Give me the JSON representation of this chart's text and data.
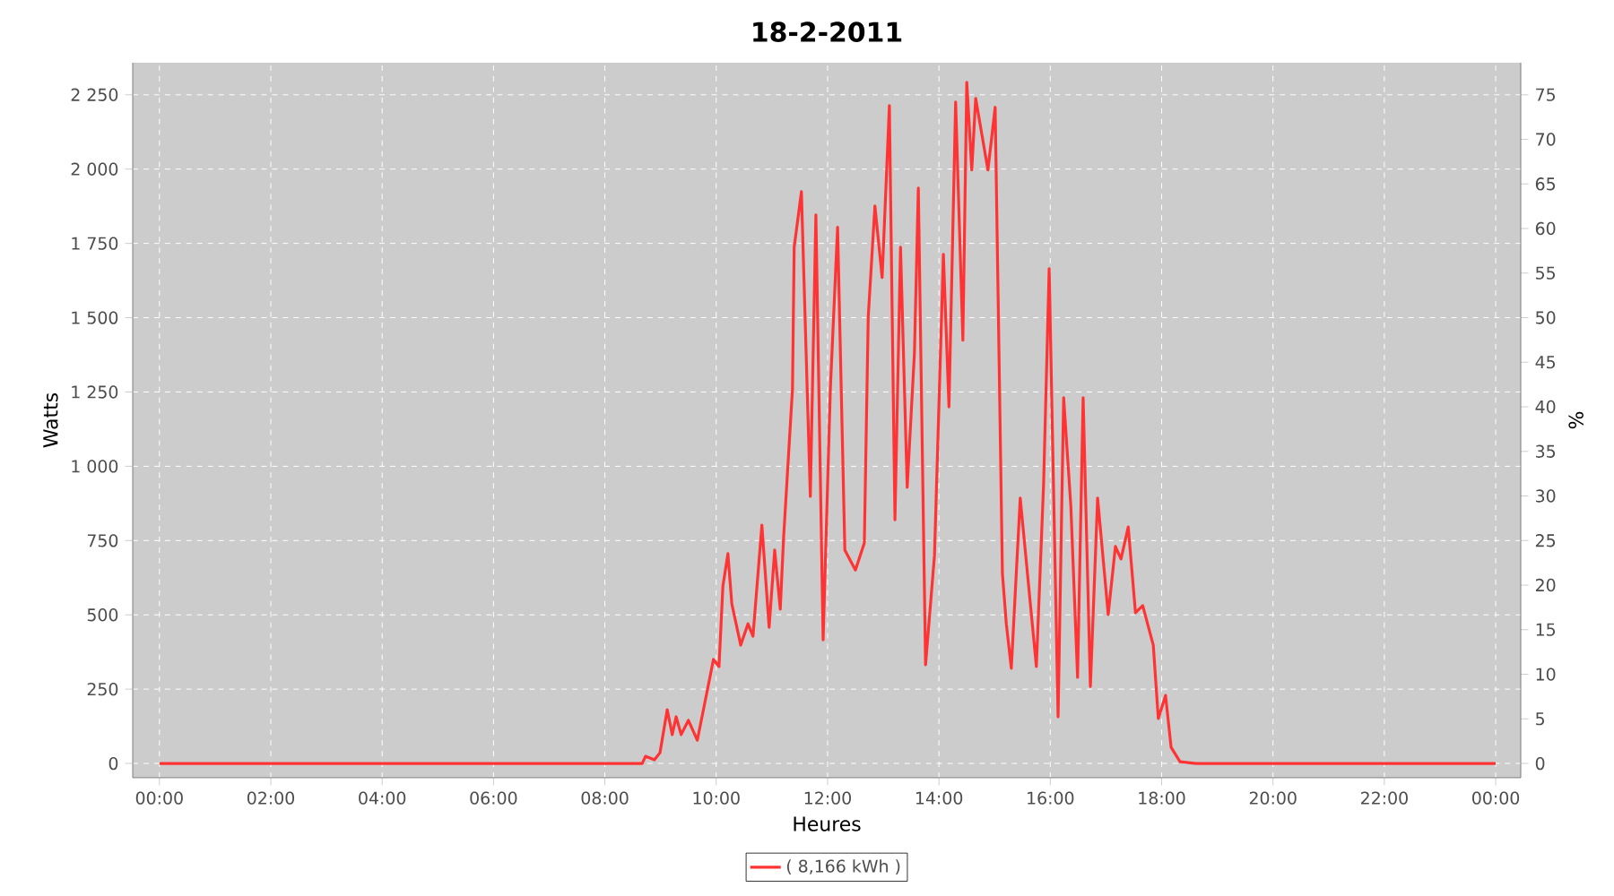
{
  "chart_data": {
    "type": "line",
    "title": "18-2-2011",
    "xlabel": "Heures",
    "ylabel": "Watts",
    "y2label": "%",
    "x": [
      0,
      7.76,
      8.67,
      8.73,
      8.89,
      8.99,
      9.12,
      9.21,
      9.28,
      9.37,
      9.5,
      9.66,
      9.79,
      9.95,
      10.05,
      10.12,
      10.21,
      10.28,
      10.44,
      10.57,
      10.66,
      10.82,
      10.95,
      11.05,
      11.15,
      11.21,
      11.37,
      11.4,
      11.53,
      11.69,
      11.79,
      11.92,
      12.05,
      12.18,
      12.31,
      12.5,
      12.66,
      12.73,
      12.85,
      12.98,
      13.11,
      13.21,
      13.31,
      13.43,
      13.56,
      13.63,
      13.76,
      13.92,
      14.08,
      14.18,
      14.3,
      14.43,
      14.5,
      14.59,
      14.66,
      14.88,
      15.01,
      15.14,
      15.21,
      15.3,
      15.46,
      15.75,
      15.88,
      15.98,
      16.14,
      16.24,
      16.37,
      16.49,
      16.59,
      16.72,
      16.85,
      17.04,
      17.17,
      17.27,
      17.4,
      17.53,
      17.66,
      17.85,
      17.94,
      18.07,
      18.17,
      18.33,
      18.62,
      24
    ],
    "series": [
      {
        "name": "( 8,166 kWh )",
        "color": "#ff3333",
        "values": [
          0,
          0,
          0,
          24,
          12,
          36,
          181,
          97,
          157,
          97,
          145,
          78,
          199,
          350,
          326,
          597,
          706,
          537,
          398,
          470,
          428,
          802,
          458,
          718,
          519,
          760,
          1261,
          1737,
          1924,
          899,
          1846,
          416,
          1261,
          1804,
          718,
          651,
          742,
          1502,
          1876,
          1635,
          2214,
          820,
          1737,
          929,
          1381,
          1936,
          332,
          700,
          1713,
          1200,
          2226,
          1424,
          2292,
          1997,
          2238,
          1997,
          2208,
          639,
          470,
          320,
          893,
          326,
          941,
          1665,
          157,
          1231,
          863,
          290,
          1231,
          259,
          893,
          501,
          730,
          688,
          796,
          507,
          531,
          398,
          151,
          229,
          54,
          6,
          0,
          0
        ]
      }
    ],
    "xlim": [
      -0.48,
      24.45
    ],
    "ylim": [
      -48,
      2358
    ],
    "y2lim": [
      -1.6,
      78.6
    ],
    "xticks": [
      {
        "value": 0,
        "label": "00:00"
      },
      {
        "value": 2,
        "label": "02:00"
      },
      {
        "value": 4,
        "label": "04:00"
      },
      {
        "value": 6,
        "label": "06:00"
      },
      {
        "value": 8,
        "label": "08:00"
      },
      {
        "value": 10,
        "label": "10:00"
      },
      {
        "value": 12,
        "label": "12:00"
      },
      {
        "value": 14,
        "label": "14:00"
      },
      {
        "value": 16,
        "label": "16:00"
      },
      {
        "value": 18,
        "label": "18:00"
      },
      {
        "value": 20,
        "label": "20:00"
      },
      {
        "value": 22,
        "label": "22:00"
      },
      {
        "value": 24,
        "label": "00:00"
      }
    ],
    "yticks": [
      0,
      250,
      500,
      750,
      {
        "value": 1000,
        "label": "1 000"
      },
      {
        "value": 1250,
        "label": "1 250"
      },
      {
        "value": 1500,
        "label": "1 500"
      },
      {
        "value": 1750,
        "label": "1 750"
      },
      {
        "value": 2000,
        "label": "2 000"
      },
      {
        "value": 2250,
        "label": "2 250"
      }
    ],
    "y2ticks": [
      0,
      5,
      10,
      15,
      20,
      25,
      30,
      35,
      40,
      45,
      50,
      55,
      60,
      65,
      70,
      75
    ],
    "grid": true,
    "legend": "bottom",
    "marker": "none",
    "line_style": "solid"
  }
}
